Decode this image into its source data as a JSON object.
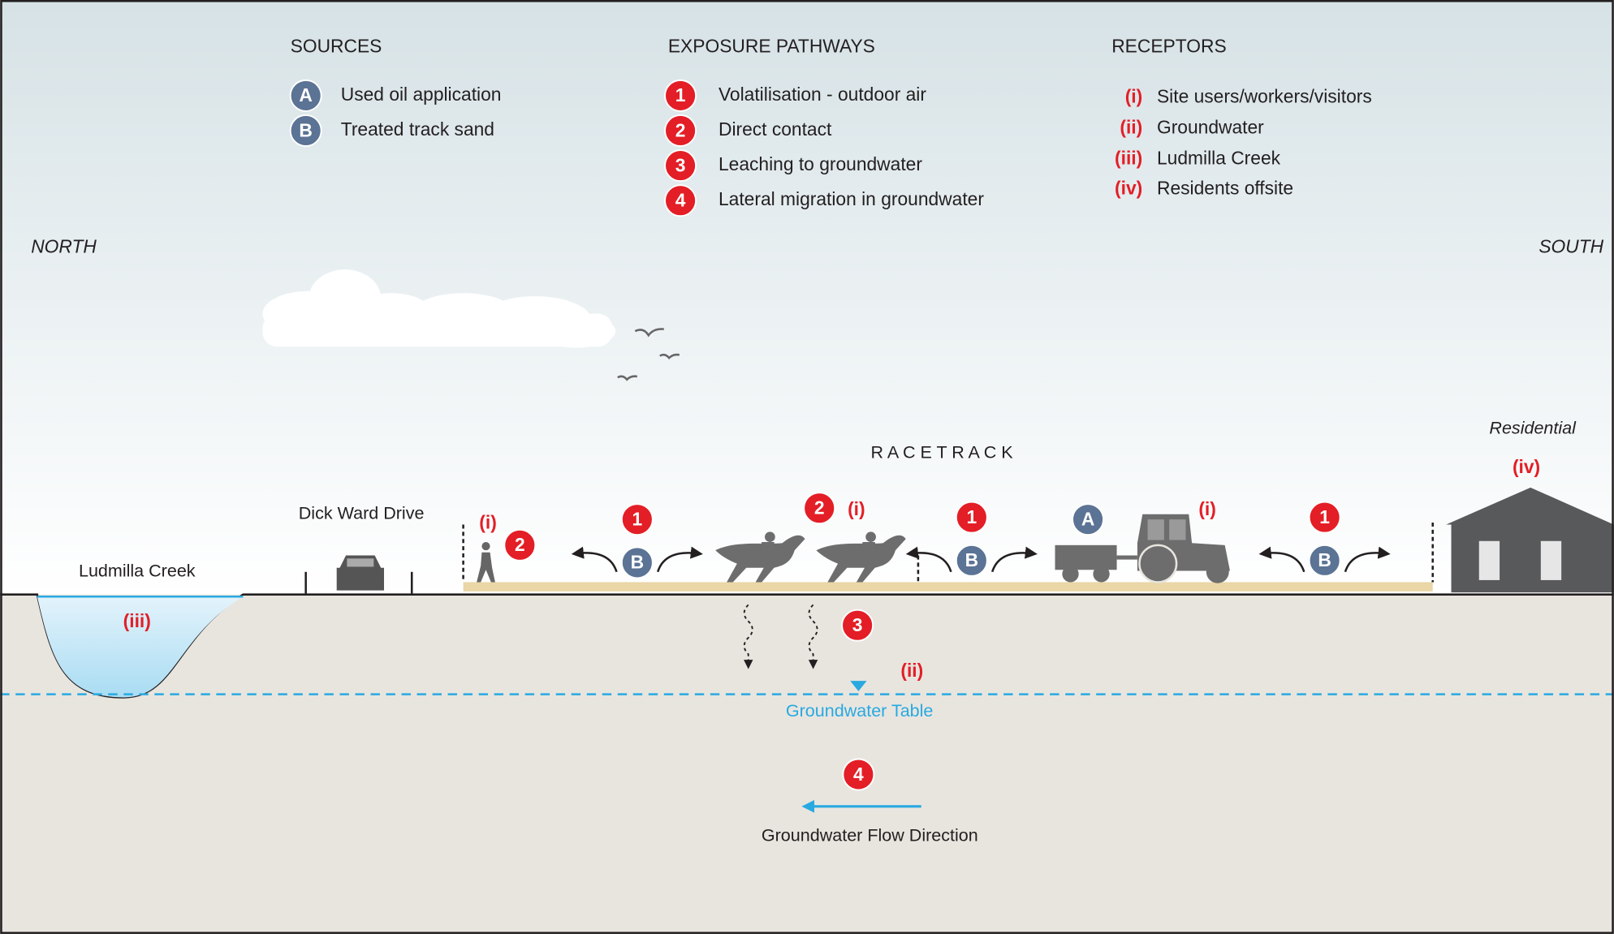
{
  "legend": {
    "sources": {
      "title": "SOURCES",
      "items": [
        {
          "key": "A",
          "label": "Used oil application"
        },
        {
          "key": "B",
          "label": "Treated track sand"
        }
      ]
    },
    "pathways": {
      "title": "EXPOSURE PATHWAYS",
      "items": [
        {
          "key": "1",
          "label": "Volatilisation - outdoor air"
        },
        {
          "key": "2",
          "label": "Direct contact"
        },
        {
          "key": "3",
          "label": "Leaching to groundwater"
        },
        {
          "key": "4",
          "label": "Lateral migration in groundwater"
        }
      ]
    },
    "receptors": {
      "title": "RECEPTORS",
      "items": [
        {
          "key": "(i)",
          "label": "Site users/workers/visitors"
        },
        {
          "key": "(ii)",
          "label": "Groundwater"
        },
        {
          "key": "(iii)",
          "label": "Ludmilla Creek"
        },
        {
          "key": "(iv)",
          "label": "Residents offsite"
        }
      ]
    }
  },
  "labels": {
    "north": "NORTH",
    "south": "SOUTH",
    "creek": "Ludmilla Creek",
    "road": "Dick Ward Drive",
    "racetrack": "R A C E T R A C K",
    "residential": "Residential",
    "groundwater_table": "Groundwater Table",
    "flow_direction": "Groundwater Flow Direction"
  },
  "markers": [
    "(i)",
    "2",
    "1",
    "B",
    "2",
    "(i)",
    "1",
    "B",
    "A",
    "(i)",
    "1",
    "B",
    "(iv)",
    "(iii)",
    "3",
    "(ii)",
    "4"
  ]
}
